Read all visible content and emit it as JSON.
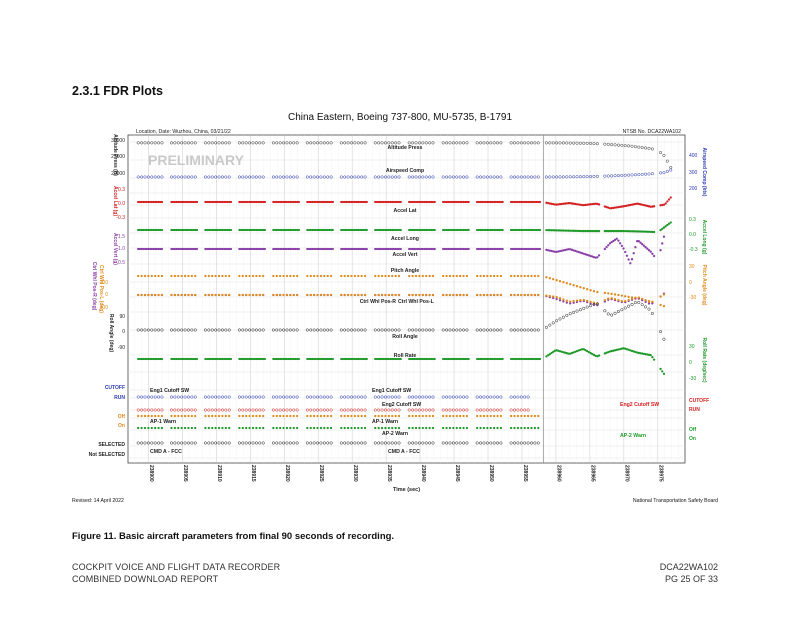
{
  "section": {
    "heading": "2.3.1 FDR Plots"
  },
  "chart_data": {
    "type": "line",
    "title": "China Eastern, Boeing 737-800, MU-5735, B-1791",
    "location_label": "Location, Date: Wuzhou, China, 03/21/22",
    "ntsb_no": "NTSB No. DCA22WA102",
    "watermark": "PRELIMINARY",
    "xlabel": "Time (sec)",
    "xlim": [
      238897,
      238979
    ],
    "x_ticks": [
      "238900",
      "238905",
      "238910",
      "238915",
      "238920",
      "238925",
      "238930",
      "238935",
      "238940",
      "238945",
      "238950",
      "238955",
      "238960",
      "238965",
      "238970",
      "238975"
    ],
    "grid": true,
    "left_axes": [
      {
        "label": "Altitude Press (ft)",
        "ticks": [
          "30000",
          "25000",
          "20000"
        ],
        "color": "#222222"
      },
      {
        "label": "Accel Lat (g)",
        "ticks": [
          "0.3",
          "0.0",
          "-0.3"
        ],
        "color": "#d42020"
      },
      {
        "label": "Accel Vert (g)",
        "ticks": [
          "1.5",
          "1.0",
          "0.5"
        ],
        "color": "#8a3fa8"
      },
      {
        "label": "Ctrl Whl Pos-R (deg)",
        "color": "#8a3fa8"
      },
      {
        "label": "Ctrl Whl Pos-L (deg)",
        "ticks": [
          "-100",
          "0",
          "100"
        ],
        "color": "#e08a1a"
      },
      {
        "label": "Roll Angle (deg)",
        "ticks": [
          "90",
          "0",
          "-90"
        ],
        "color": "#222222"
      }
    ],
    "right_axes": [
      {
        "label": "Airspeed Comp (kts)",
        "ticks": [
          "400",
          "300",
          "200"
        ],
        "color": "#2a3ab0"
      },
      {
        "label": "Accel Long (g)",
        "ticks": [
          "0.3",
          "0.0",
          "-0.3"
        ],
        "color": "#1f9a2a"
      },
      {
        "label": "Pitch Angle (deg)",
        "ticks": [
          "30",
          "0",
          "-30"
        ],
        "color": "#e08a1a"
      },
      {
        "label": "Roll Rate (deg/sec)",
        "ticks": [
          "30",
          "0",
          "-30"
        ],
        "color": "#1f9a2a"
      }
    ],
    "discrete_labels": {
      "cutoff": "CUTOFF",
      "run": "RUN",
      "off": "Off",
      "on": "On",
      "selected": "SELECTED",
      "not_selected": "Not SELECTED"
    },
    "series": [
      {
        "name": "Altitude Press",
        "color": "#333333",
        "x": [
          238897,
          238958,
          238961,
          238965,
          238968,
          238971,
          238974,
          238975,
          238976,
          238977
        ],
        "y": [
          29100,
          29100,
          29080,
          28950,
          28600,
          28100,
          27300,
          26800,
          25000,
          21000
        ]
      },
      {
        "name": "Airspeed Comp",
        "color": "#2a3ab0",
        "x": [
          238897,
          238958,
          238961,
          238965,
          238968,
          238971,
          238974,
          238976,
          238977
        ],
        "y": [
          300,
          300,
          301,
          305,
          312,
          322,
          335,
          350,
          380
        ]
      },
      {
        "name": "Accel Lat",
        "color": "#d42020",
        "x": [
          238897,
          238958,
          238960,
          238962,
          238964,
          238966,
          238968,
          238970,
          238972,
          238974,
          238976,
          238977
        ],
        "y": [
          0.0,
          0.0,
          -0.05,
          -0.02,
          -0.06,
          -0.03,
          -0.12,
          -0.08,
          -0.03,
          -0.09,
          -0.05,
          0.1
        ]
      },
      {
        "name": "Accel Long",
        "color": "#1f9a2a",
        "x": [
          238897,
          238958,
          238961,
          238964,
          238967,
          238970,
          238973,
          238975,
          238977
        ],
        "y": [
          0.0,
          0.0,
          -0.01,
          -0.02,
          -0.02,
          -0.02,
          -0.03,
          -0.04,
          0.15
        ]
      },
      {
        "name": "Accel Vert",
        "color": "#8a3fa8",
        "x": [
          238897,
          238958,
          238960,
          238962,
          238964,
          238966,
          238968,
          238969,
          238970,
          238971,
          238972,
          238973,
          238974,
          238975,
          238976
        ],
        "y": [
          1.0,
          1.0,
          0.9,
          1.0,
          0.85,
          0.7,
          1.2,
          1.35,
          1.0,
          0.5,
          1.3,
          1.1,
          0.9,
          0.6,
          1.5
        ]
      },
      {
        "name": "Pitch Angle",
        "color": "#e08a1a",
        "x": [
          238897,
          238958,
          238960,
          238962,
          238964,
          238966,
          238968,
          238970,
          238972,
          238974,
          238976
        ],
        "y": [
          0,
          0,
          -5,
          -10,
          -15,
          -20,
          -22,
          -25,
          -28,
          -32,
          -38
        ]
      },
      {
        "name": "Ctrl Whl Pos-R",
        "color": "#8a3fa8",
        "x": [
          238897,
          238958,
          238960,
          238962,
          238964,
          238966,
          238968,
          238970,
          238972,
          238974,
          238976
        ],
        "y": [
          0,
          0,
          -20,
          -45,
          -30,
          -55,
          -20,
          -40,
          -15,
          -50,
          10
        ]
      },
      {
        "name": "Ctrl Whl Pos-L",
        "color": "#e08a1a",
        "x": [
          238897,
          238958,
          238960,
          238962,
          238964,
          238966,
          238968,
          238970,
          238972,
          238974,
          238976
        ],
        "y": [
          0,
          0,
          -10,
          -35,
          -25,
          -45,
          -15,
          -35,
          -10,
          -40,
          5
        ]
      },
      {
        "name": "Roll Angle",
        "color": "#222222",
        "x": [
          238897,
          238958,
          238960,
          238962,
          238964,
          238966,
          238968,
          238970,
          238972,
          238974,
          238976
        ],
        "y": [
          0,
          0,
          25,
          45,
          60,
          75,
          40,
          60,
          80,
          55,
          -30
        ]
      },
      {
        "name": "Roll Rate",
        "color": "#1f9a2a",
        "x": [
          238897,
          238958,
          238960,
          238962,
          238964,
          238966,
          238968,
          238970,
          238972,
          238974,
          238976
        ],
        "y": [
          0,
          0,
          14,
          8,
          16,
          4,
          12,
          17,
          10,
          6,
          -25
        ]
      },
      {
        "name": "Eng1 Cutoff SW",
        "color": "#2a3ab0",
        "x": [
          238897,
          238956
        ],
        "y": [
          1,
          1
        ]
      },
      {
        "name": "Eng2 Cutoff SW",
        "color": "#d42020",
        "x": [
          238897,
          238956
        ],
        "y": [
          1,
          1
        ]
      },
      {
        "name": "AP-1 Warn",
        "color": "#e08a1a",
        "x": [
          238897,
          238976
        ],
        "y": [
          0,
          0
        ]
      },
      {
        "name": "AP-2 Warn",
        "color": "#1f9a2a",
        "x": [
          238897,
          238976
        ],
        "y": [
          0,
          0
        ]
      },
      {
        "name": "CMD A - FCC",
        "color": "#222222",
        "x": [
          238897,
          238958
        ],
        "y": [
          1,
          1
        ]
      }
    ]
  },
  "footer": {
    "revised": "Revised: 14 April 2022",
    "ntsb": "National Transportation Safety Board",
    "caption": "Figure 11. Basic aircraft parameters from final 90 seconds of recording.",
    "left_line1": "COCKPIT VOICE AND FLIGHT DATA RECORDER",
    "left_line2": "COMBINED DOWNLOAD REPORT",
    "right_line1": "DCA22WA102",
    "right_line2": "PG 25 OF 33"
  }
}
